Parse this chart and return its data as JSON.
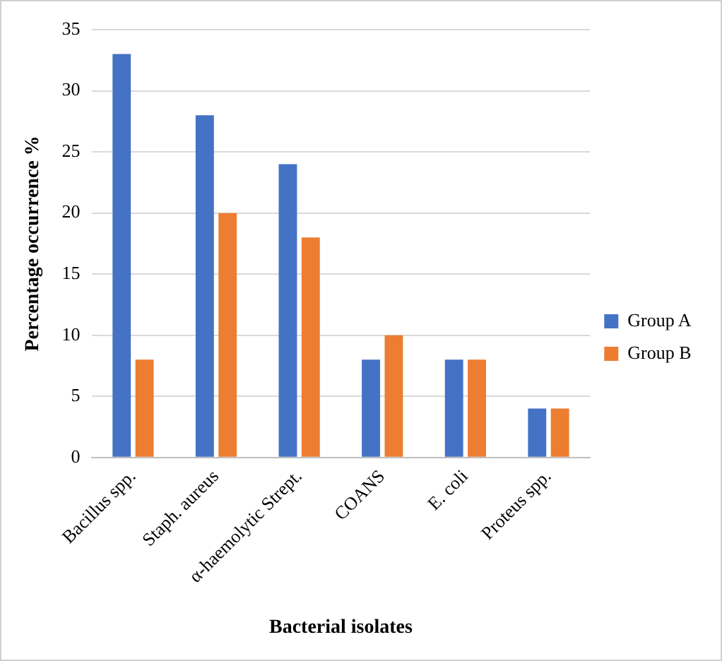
{
  "chart_data": {
    "type": "bar",
    "xlabel": "Bacterial isolates",
    "ylabel": "Percentage occurrence %",
    "categories": [
      "Bacillus spp.",
      "Staph. aureus",
      "α-haemolytic Strept.",
      "COANS",
      "E. coli",
      "Proteus spp."
    ],
    "series": [
      {
        "name": "Group A",
        "color": "#4472c4",
        "values": [
          33,
          28,
          24,
          8,
          8,
          4
        ]
      },
      {
        "name": "Group B",
        "color": "#ed7d31",
        "values": [
          8,
          20,
          18,
          10,
          8,
          4
        ]
      }
    ],
    "ylim": [
      0,
      35
    ],
    "yticks": [
      0,
      5,
      10,
      15,
      20,
      25,
      30,
      35
    ],
    "grid": "y",
    "legend": "right"
  }
}
